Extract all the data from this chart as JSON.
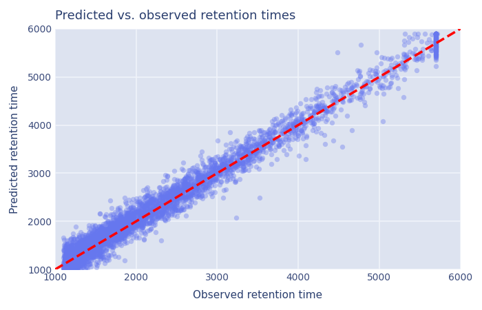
{
  "title": "Predicted vs. observed retention times",
  "xlabel": "Observed retention time",
  "ylabel": "Predicted retention time",
  "xlim": [
    1000,
    6000
  ],
  "ylim": [
    1000,
    6000
  ],
  "xticks": [
    1000,
    2000,
    3000,
    4000,
    5000,
    6000
  ],
  "yticks": [
    1000,
    2000,
    3000,
    4000,
    5000,
    6000
  ],
  "scatter_color": "#6677ee",
  "scatter_alpha": 0.38,
  "scatter_size": 28,
  "diagonal_color": "red",
  "diagonal_linestyle": "--",
  "diagonal_linewidth": 2.5,
  "plot_bg_color": "#dde3f0",
  "outer_bg_color": "#ffffff",
  "grid_color": "#f0f3fa",
  "title_color": "#2a3e6e",
  "label_color": "#2a3e6e",
  "tick_color": "#3a4a7a",
  "n_points": 3500,
  "seed": 42,
  "obs_mean": 2600,
  "obs_std": 800,
  "noise_std": 180,
  "title_fontsize": 13,
  "label_fontsize": 11
}
